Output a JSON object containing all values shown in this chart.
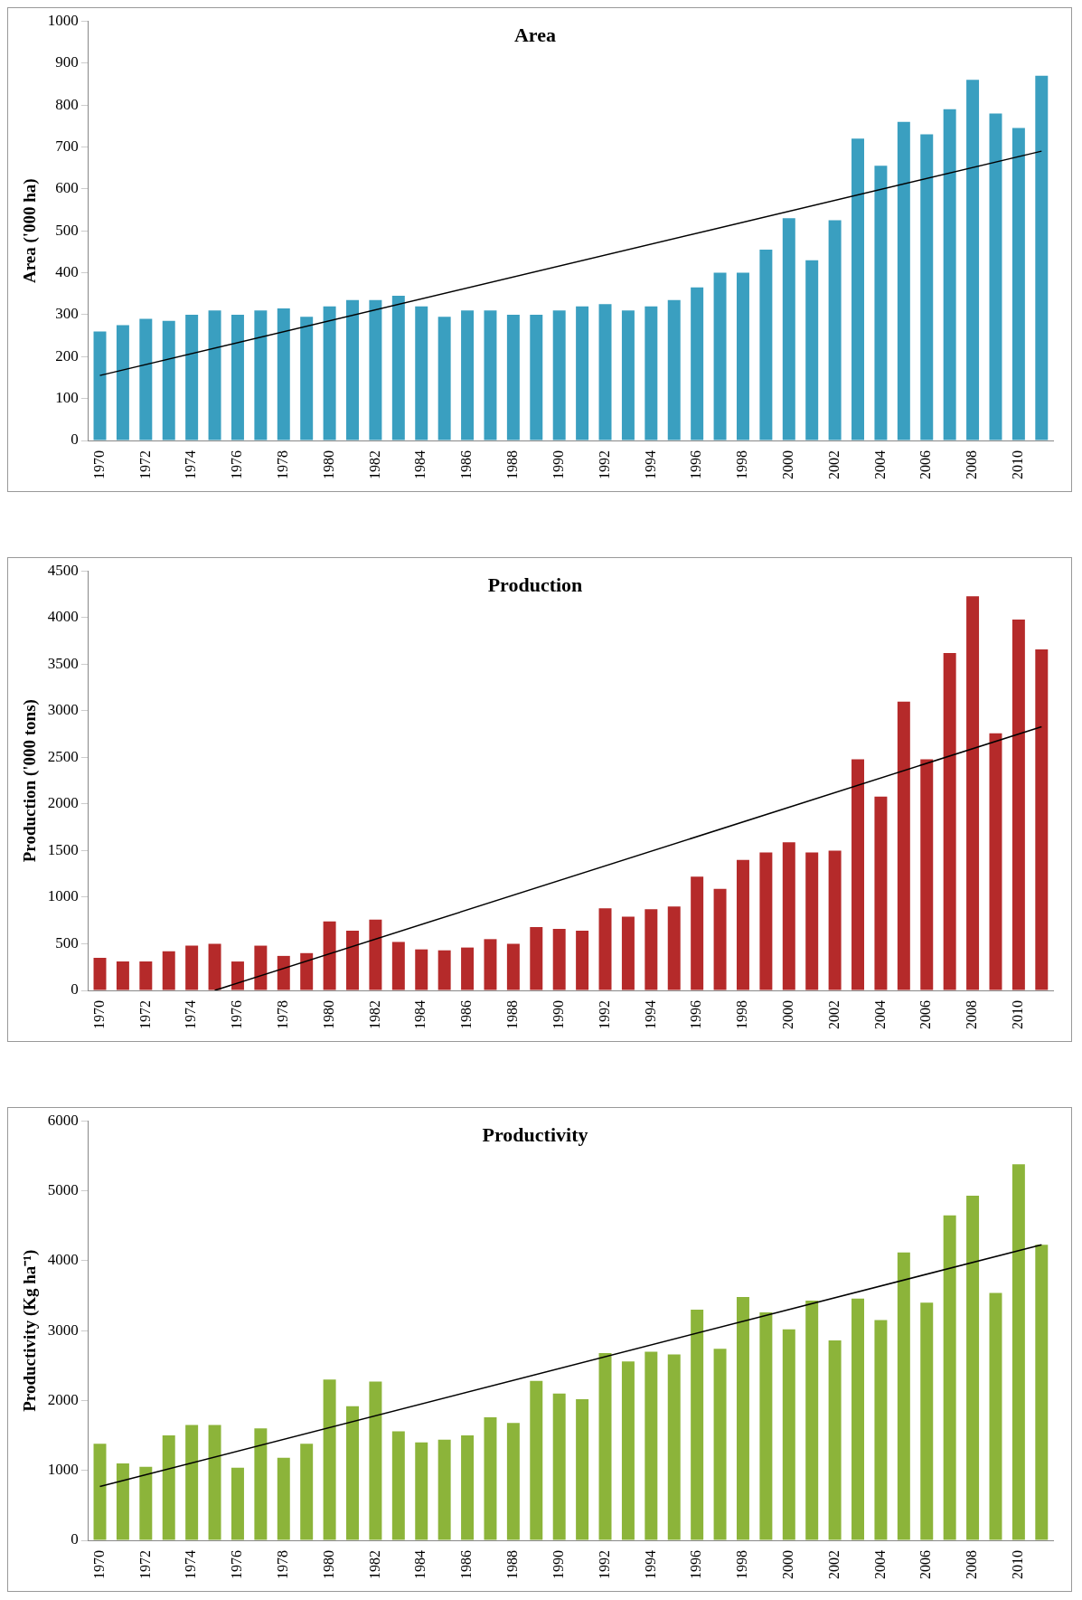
{
  "chart_data": [
    {
      "type": "bar",
      "title": "Area",
      "ylabel": "Area ('000 ha)",
      "x": [
        1970,
        1971,
        1972,
        1973,
        1974,
        1975,
        1976,
        1977,
        1978,
        1979,
        1980,
        1981,
        1982,
        1983,
        1984,
        1985,
        1986,
        1987,
        1988,
        1989,
        1990,
        1991,
        1992,
        1993,
        1994,
        1995,
        1996,
        1997,
        1998,
        1999,
        2000,
        2001,
        2002,
        2003,
        2004,
        2005,
        2006,
        2007,
        2008,
        2009,
        2010,
        2011
      ],
      "xlim": [
        1969.5,
        2011.5
      ],
      "xticks": [
        1970,
        1972,
        1974,
        1976,
        1978,
        1980,
        1982,
        1984,
        1986,
        1988,
        1990,
        1992,
        1994,
        1996,
        1998,
        2000,
        2002,
        2004,
        2006,
        2008,
        2010
      ],
      "ylim": [
        0,
        1000
      ],
      "yticks": [
        0,
        100,
        200,
        300,
        400,
        500,
        600,
        700,
        800,
        900,
        1000
      ],
      "series": [
        {
          "color": "#3a9fc0",
          "values": [
            260,
            275,
            290,
            285,
            300,
            310,
            300,
            310,
            315,
            295,
            320,
            335,
            335,
            345,
            320,
            295,
            310,
            310,
            300,
            300,
            310,
            320,
            325,
            310,
            320,
            335,
            365,
            400,
            400,
            455,
            530,
            430,
            525,
            720,
            655,
            760,
            730,
            790,
            860,
            780,
            745,
            870
          ]
        },
        {
          "type": "line",
          "color": "#000000",
          "marker": "none",
          "x": [
            1970,
            2011
          ],
          "values": [
            155,
            690
          ]
        }
      ]
    },
    {
      "type": "bar",
      "title": "Production",
      "ylabel": "Production ('000 tons)",
      "x": [
        1970,
        1971,
        1972,
        1973,
        1974,
        1975,
        1976,
        1977,
        1978,
        1979,
        1980,
        1981,
        1982,
        1983,
        1984,
        1985,
        1986,
        1987,
        1988,
        1989,
        1990,
        1991,
        1992,
        1993,
        1994,
        1995,
        1996,
        1997,
        1998,
        1999,
        2000,
        2001,
        2002,
        2003,
        2004,
        2005,
        2006,
        2007,
        2008,
        2009,
        2010,
        2011
      ],
      "xlim": [
        1969.5,
        2011.5
      ],
      "xticks": [
        1970,
        1972,
        1974,
        1976,
        1978,
        1980,
        1982,
        1984,
        1986,
        1988,
        1990,
        1992,
        1994,
        1996,
        1998,
        2000,
        2002,
        2004,
        2006,
        2008,
        2010
      ],
      "ylim": [
        0,
        4500
      ],
      "yticks": [
        0,
        500,
        1000,
        1500,
        2000,
        2500,
        3000,
        3500,
        4000,
        4500
      ],
      "series": [
        {
          "color": "#b52a2a",
          "values": [
            350,
            310,
            310,
            420,
            480,
            500,
            310,
            480,
            370,
            400,
            740,
            640,
            760,
            520,
            440,
            430,
            460,
            550,
            500,
            680,
            660,
            640,
            880,
            790,
            870,
            900,
            1220,
            1090,
            1400,
            1480,
            1590,
            1480,
            1500,
            2480,
            2080,
            3100,
            2480,
            3620,
            4230,
            2760,
            3980,
            3660
          ]
        },
        {
          "type": "line",
          "color": "#000000",
          "marker": "none",
          "x": [
            1975,
            2011
          ],
          "values": [
            0,
            2830
          ]
        }
      ]
    },
    {
      "type": "bar",
      "title": "Productivity",
      "ylabel": "Productivity (Kg ha⁻¹)",
      "x": [
        1970,
        1971,
        1972,
        1973,
        1974,
        1975,
        1976,
        1977,
        1978,
        1979,
        1980,
        1981,
        1982,
        1983,
        1984,
        1985,
        1986,
        1987,
        1988,
        1989,
        1990,
        1991,
        1992,
        1993,
        1994,
        1995,
        1996,
        1997,
        1998,
        1999,
        2000,
        2001,
        2002,
        2003,
        2004,
        2005,
        2006,
        2007,
        2008,
        2009,
        2010,
        2011
      ],
      "xlim": [
        1969.5,
        2011.5
      ],
      "xticks": [
        1970,
        1972,
        1974,
        1976,
        1978,
        1980,
        1982,
        1984,
        1986,
        1988,
        1990,
        1992,
        1994,
        1996,
        1998,
        2000,
        2002,
        2004,
        2006,
        2008,
        2010
      ],
      "ylim": [
        0,
        6000
      ],
      "yticks": [
        0,
        1000,
        2000,
        3000,
        4000,
        5000,
        6000
      ],
      "series": [
        {
          "color": "#8cb43a",
          "values": [
            1380,
            1100,
            1050,
            1500,
            1650,
            1650,
            1040,
            1600,
            1180,
            1380,
            2300,
            1920,
            2270,
            1560,
            1400,
            1440,
            1500,
            1760,
            1680,
            2280,
            2100,
            2020,
            2680,
            2560,
            2700,
            2660,
            3300,
            2740,
            3480,
            3260,
            3020,
            3430,
            2860,
            3460,
            3150,
            4120,
            3400,
            4650,
            4930,
            3540,
            5380,
            4230
          ]
        },
        {
          "type": "line",
          "color": "#000000",
          "marker": "none",
          "x": [
            1970,
            2011
          ],
          "values": [
            770,
            4230
          ]
        }
      ]
    }
  ]
}
